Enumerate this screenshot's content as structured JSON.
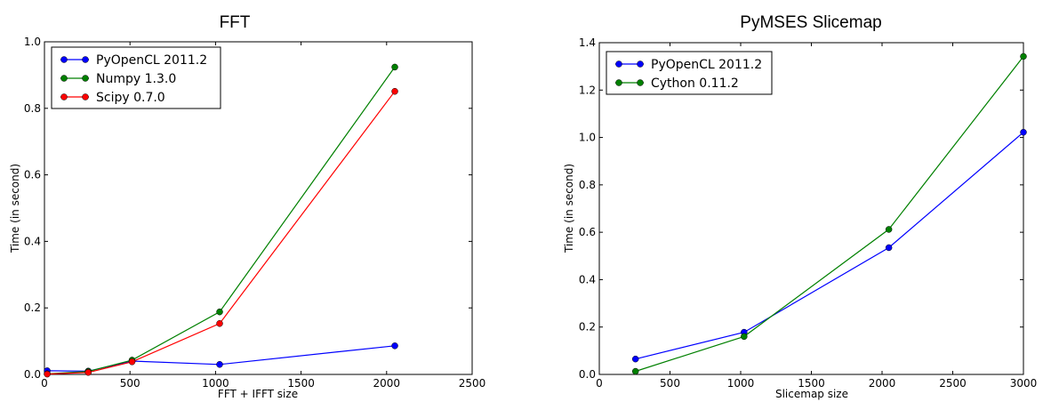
{
  "chart_data": [
    {
      "type": "line",
      "title": "FFT",
      "xlabel": "FFT + IFFT size",
      "ylabel": "Time (in second)",
      "xlim": [
        0,
        2500
      ],
      "ylim": [
        0,
        1.0
      ],
      "xticks": [
        0,
        500,
        1000,
        1500,
        2000,
        2500
      ],
      "xtick_labels": [
        "0",
        "500",
        "1000",
        "1500",
        "2000",
        "2500"
      ],
      "yticks": [
        0,
        0.2,
        0.4,
        0.6,
        0.8,
        1.0
      ],
      "ytick_labels": [
        "0.0",
        "0.2",
        "0.4",
        "0.6",
        "0.8",
        "1.0"
      ],
      "legend_position": "top-left",
      "x": [
        16,
        256,
        512,
        1024,
        2048
      ],
      "series": [
        {
          "name": "PyOpenCL 2011.2",
          "color": "#0000ff",
          "values": [
            0.011,
            0.01,
            0.04,
            0.03,
            0.086
          ]
        },
        {
          "name": "Numpy 1.3.0",
          "color": "#008000",
          "values": [
            0.002,
            0.009,
            0.043,
            0.188,
            0.924
          ]
        },
        {
          "name": "Scipy 0.7.0",
          "color": "#ff0000",
          "values": [
            0.001,
            0.006,
            0.038,
            0.153,
            0.851
          ]
        }
      ]
    },
    {
      "type": "line",
      "title": "PyMSES Slicemap",
      "xlabel": "Slicemap size",
      "ylabel": "Time (in second)",
      "xlim": [
        0,
        3000
      ],
      "ylim": [
        0,
        1.4
      ],
      "xticks": [
        0,
        500,
        1000,
        1500,
        2000,
        2500,
        3000
      ],
      "xtick_labels": [
        "0",
        "500",
        "1000",
        "1500",
        "2000",
        "2500",
        "3000"
      ],
      "yticks": [
        0,
        0.2,
        0.4,
        0.6,
        0.8,
        1.0,
        1.2,
        1.4
      ],
      "ytick_labels": [
        "0.0",
        "0.2",
        "0.4",
        "0.6",
        "0.8",
        "1.0",
        "1.2",
        "1.4"
      ],
      "legend_position": "top-left",
      "x": [
        256,
        1024,
        2048,
        3000
      ],
      "series": [
        {
          "name": "PyOpenCL 2011.2",
          "color": "#0000ff",
          "values": [
            0.065,
            0.178,
            0.535,
            1.022
          ]
        },
        {
          "name": "Cython 0.11.2",
          "color": "#008000",
          "values": [
            0.013,
            0.16,
            0.612,
            1.342
          ]
        }
      ]
    }
  ]
}
